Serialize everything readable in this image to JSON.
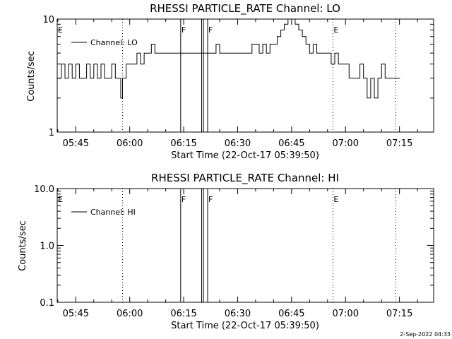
{
  "chart_data": [
    {
      "type": "line",
      "title": "RHESSI PARTICLE_RATE Channel: LO",
      "xlabel": "Start Time (22-Oct-17 05:39:50)",
      "ylabel": "Counts/sec",
      "yscale": "log",
      "ylim": [
        1,
        10
      ],
      "ytick_labels": [
        "1",
        "10"
      ],
      "xlim": [
        "05:39:50",
        "07:24:30"
      ],
      "xtick_labels": [
        "05:45",
        "06:00",
        "06:15",
        "06:30",
        "06:45",
        "07:00",
        "07:15"
      ],
      "legend": {
        "position": "top-left",
        "entries": [
          "Channel: LO"
        ]
      },
      "event_markers": [
        {
          "label": "E",
          "time": "05:39:50",
          "style": "none"
        },
        {
          "label": "",
          "time": "05:58:00",
          "style": "dotted"
        },
        {
          "label": "F",
          "time": "06:14:10",
          "style": "solid"
        },
        {
          "label": "",
          "time": "06:20:00",
          "style": "solid"
        },
        {
          "label": "",
          "time": "06:20:30",
          "style": "solid"
        },
        {
          "label": "F",
          "time": "06:21:40",
          "style": "solid"
        },
        {
          "label": "E",
          "time": "06:56:30",
          "style": "dotted"
        },
        {
          "label": "",
          "time": "07:14:00",
          "style": "dotted"
        }
      ],
      "series": [
        {
          "name": "Channel: LO",
          "x": [
            "05:39:50",
            "05:41:00",
            "05:42:00",
            "05:43:00",
            "05:44:00",
            "05:45:00",
            "05:46:00",
            "05:47:00",
            "05:48:00",
            "05:49:00",
            "05:50:00",
            "05:51:00",
            "05:52:00",
            "05:53:00",
            "05:54:00",
            "05:55:00",
            "05:56:00",
            "05:57:00",
            "05:57:30",
            "05:58:00",
            "05:59:00",
            "06:00:00",
            "06:01:00",
            "06:02:00",
            "06:03:00",
            "06:04:00",
            "06:05:00",
            "06:06:00",
            "06:07:00",
            "06:08:00",
            "06:09:00",
            "06:10:00",
            "06:11:00",
            "06:12:00",
            "06:13:00",
            "06:14:00",
            "06:15:00",
            "06:16:00",
            "06:17:00",
            "06:18:00",
            "06:19:00",
            "06:20:00",
            "06:21:00",
            "06:22:00",
            "06:23:00",
            "06:24:00",
            "06:25:00",
            "06:26:00",
            "06:27:00",
            "06:28:00",
            "06:29:00",
            "06:30:00",
            "06:31:00",
            "06:32:00",
            "06:33:00",
            "06:34:00",
            "06:35:00",
            "06:36:00",
            "06:37:00",
            "06:38:00",
            "06:39:00",
            "06:40:00",
            "06:41:00",
            "06:42:00",
            "06:43:00",
            "06:44:00",
            "06:45:00",
            "06:46:00",
            "06:47:00",
            "06:48:00",
            "06:49:00",
            "06:50:00",
            "06:51:00",
            "06:52:00",
            "06:53:00",
            "06:54:00",
            "06:55:00",
            "06:56:00",
            "06:57:00",
            "06:58:00",
            "06:59:00",
            "07:00:00",
            "07:01:00",
            "07:02:00",
            "07:03:00",
            "07:04:00",
            "07:05:00",
            "07:06:00",
            "07:07:00",
            "07:08:00",
            "07:09:00",
            "07:10:00",
            "07:11:00",
            "07:12:00",
            "07:13:00",
            "07:14:00"
          ],
          "y": [
            3,
            4,
            3,
            4,
            3,
            4,
            3,
            3,
            4,
            3,
            4,
            3,
            4,
            3,
            3,
            4,
            3,
            3,
            2,
            3,
            4,
            4,
            4,
            5,
            4,
            5,
            5,
            6,
            5,
            5,
            5,
            5,
            5,
            5,
            5,
            5,
            5,
            5,
            5,
            5,
            5,
            5,
            5,
            5,
            5,
            6,
            5,
            5,
            5,
            5,
            5,
            5,
            5,
            5,
            5,
            6,
            6,
            5,
            6,
            5,
            6,
            6,
            7,
            8,
            9,
            10,
            10,
            9,
            8,
            7,
            6,
            5,
            6,
            5,
            5,
            5,
            5,
            4,
            5,
            4,
            4,
            4,
            3,
            3,
            3,
            4,
            3,
            2,
            3,
            2,
            3,
            4,
            3,
            3,
            3,
            3
          ]
        }
      ]
    },
    {
      "type": "line",
      "title": "RHESSI PARTICLE_RATE Channel: HI",
      "xlabel": "Start Time (22-Oct-17 05:39:50)",
      "ylabel": "Counts/sec",
      "yscale": "log",
      "ylim": [
        0.1,
        10.0
      ],
      "ytick_labels": [
        "0.1",
        "1.0",
        "10.0"
      ],
      "xlim": [
        "05:39:50",
        "07:24:30"
      ],
      "xtick_labels": [
        "05:45",
        "06:00",
        "06:15",
        "06:30",
        "06:45",
        "07:00",
        "07:15"
      ],
      "legend": {
        "position": "top-left",
        "entries": [
          "Channel: HI"
        ]
      },
      "event_markers": [
        {
          "label": "E",
          "time": "05:39:50",
          "style": "none"
        },
        {
          "label": "",
          "time": "05:58:00",
          "style": "dotted"
        },
        {
          "label": "F",
          "time": "06:14:10",
          "style": "solid"
        },
        {
          "label": "",
          "time": "06:20:00",
          "style": "solid"
        },
        {
          "label": "",
          "time": "06:20:30",
          "style": "solid"
        },
        {
          "label": "F",
          "time": "06:21:40",
          "style": "solid"
        },
        {
          "label": "E",
          "time": "06:56:30",
          "style": "dotted"
        },
        {
          "label": "",
          "time": "07:14:00",
          "style": "dotted"
        }
      ],
      "series": [
        {
          "name": "Channel: HI",
          "x": [],
          "y": []
        }
      ]
    }
  ],
  "footer": {
    "timestamp": "2-Sep-2022 04:33"
  }
}
